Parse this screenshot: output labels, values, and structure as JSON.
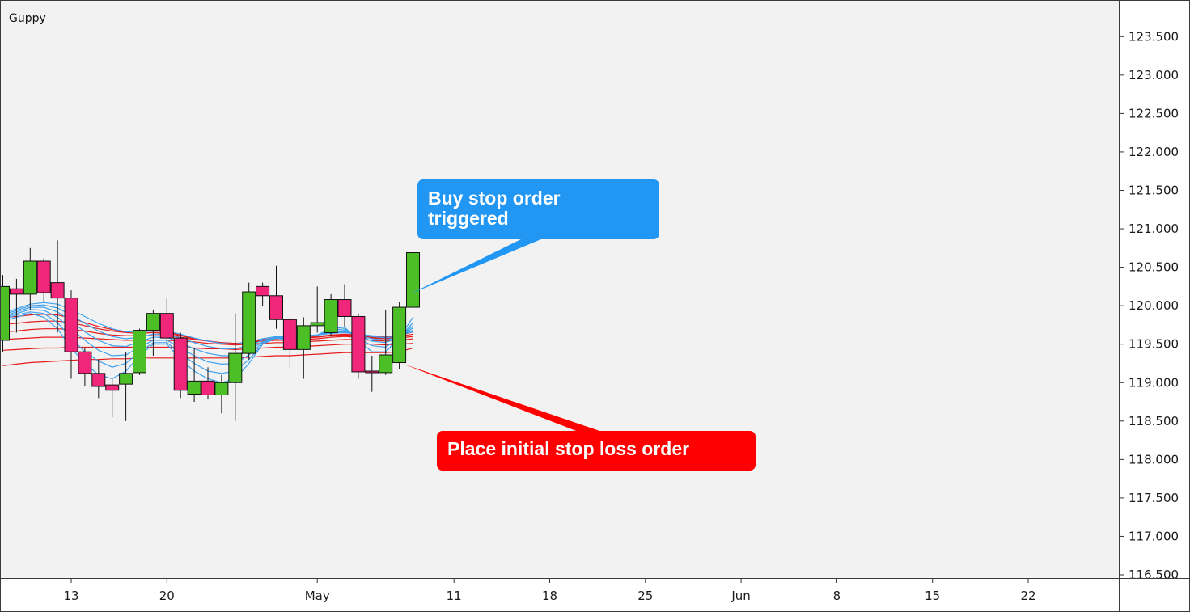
{
  "chart_data": {
    "type": "candlestick",
    "title": "Guppy",
    "colors": {
      "background": "#f2f2f2",
      "up": "#4cbf26",
      "down": "#f0267a",
      "short_ema": "#3ea2f0",
      "long_ema": "#e81b1b",
      "buy_callout": "#2196f3",
      "stop_callout": "#ff0000"
    },
    "y_axis": {
      "min": 116.5,
      "max": 123.75,
      "ticks": [
        "123.500",
        "123.000",
        "122.500",
        "122.000",
        "121.500",
        "121.000",
        "120.500",
        "120.000",
        "119.500",
        "119.000",
        "118.500",
        "118.000",
        "117.500",
        "117.000",
        "116.500"
      ]
    },
    "x_axis": {
      "start": "2020-04-08",
      "end": "2020-06-27",
      "ticks": [
        {
          "date": "2020-04-13",
          "label": "13"
        },
        {
          "date": "2020-04-20",
          "label": "20"
        },
        {
          "date": "2020-05-01",
          "label": "May"
        },
        {
          "date": "2020-05-11",
          "label": "11"
        },
        {
          "date": "2020-05-18",
          "label": "18"
        },
        {
          "date": "2020-05-25",
          "label": "25"
        },
        {
          "date": "2020-06-01",
          "label": "Jun"
        },
        {
          "date": "2020-06-08",
          "label": "8"
        },
        {
          "date": "2020-06-15",
          "label": "15"
        },
        {
          "date": "2020-06-22",
          "label": "22"
        }
      ]
    },
    "candles": [
      {
        "date": "2020-04-08",
        "o": 119.55,
        "h": 120.4,
        "l": 119.4,
        "c": 120.25
      },
      {
        "date": "2020-04-09",
        "o": 120.22,
        "h": 120.35,
        "l": 119.65,
        "c": 120.15
      },
      {
        "date": "2020-04-10",
        "o": 120.15,
        "h": 120.75,
        "l": 119.95,
        "c": 120.58
      },
      {
        "date": "2020-04-11",
        "o": 120.58,
        "h": 120.62,
        "l": 120.05,
        "c": 120.17
      },
      {
        "date": "2020-04-12",
        "o": 120.3,
        "h": 120.85,
        "l": 119.65,
        "c": 120.1
      },
      {
        "date": "2020-04-13",
        "o": 120.1,
        "h": 120.2,
        "l": 119.05,
        "c": 119.4
      },
      {
        "date": "2020-04-14",
        "o": 119.4,
        "h": 119.45,
        "l": 118.95,
        "c": 119.12
      },
      {
        "date": "2020-04-15",
        "o": 119.12,
        "h": 119.3,
        "l": 118.8,
        "c": 118.95
      },
      {
        "date": "2020-04-16",
        "o": 118.97,
        "h": 119.05,
        "l": 118.55,
        "c": 118.9
      },
      {
        "date": "2020-04-17",
        "o": 118.98,
        "h": 119.4,
        "l": 118.5,
        "c": 119.12
      },
      {
        "date": "2020-04-18",
        "o": 119.13,
        "h": 119.7,
        "l": 119.1,
        "c": 119.68
      },
      {
        "date": "2020-04-19",
        "o": 119.68,
        "h": 119.95,
        "l": 119.35,
        "c": 119.9
      },
      {
        "date": "2020-04-20",
        "o": 119.9,
        "h": 120.1,
        "l": 119.5,
        "c": 119.58
      },
      {
        "date": "2020-04-21",
        "o": 119.58,
        "h": 119.65,
        "l": 118.8,
        "c": 118.9
      },
      {
        "date": "2020-04-22",
        "o": 118.85,
        "h": 119.45,
        "l": 118.75,
        "c": 119.02
      },
      {
        "date": "2020-04-23",
        "o": 119.02,
        "h": 119.2,
        "l": 118.78,
        "c": 118.84
      },
      {
        "date": "2020-04-24",
        "o": 118.84,
        "h": 119.1,
        "l": 118.6,
        "c": 119.0
      },
      {
        "date": "2020-04-25",
        "o": 119.0,
        "h": 119.9,
        "l": 118.5,
        "c": 119.38
      },
      {
        "date": "2020-04-26",
        "o": 119.38,
        "h": 120.3,
        "l": 119.3,
        "c": 120.18
      },
      {
        "date": "2020-04-27",
        "o": 120.25,
        "h": 120.3,
        "l": 120.0,
        "c": 120.13
      },
      {
        "date": "2020-04-28",
        "o": 120.13,
        "h": 120.52,
        "l": 119.7,
        "c": 119.82
      },
      {
        "date": "2020-04-29",
        "o": 119.82,
        "h": 119.85,
        "l": 119.2,
        "c": 119.43
      },
      {
        "date": "2020-04-30",
        "o": 119.43,
        "h": 119.85,
        "l": 119.05,
        "c": 119.74
      },
      {
        "date": "2020-05-01",
        "o": 119.74,
        "h": 120.25,
        "l": 119.65,
        "c": 119.78
      },
      {
        "date": "2020-05-02",
        "o": 119.65,
        "h": 120.15,
        "l": 119.6,
        "c": 120.08
      },
      {
        "date": "2020-05-03",
        "o": 120.08,
        "h": 120.28,
        "l": 119.72,
        "c": 119.86
      },
      {
        "date": "2020-05-04",
        "o": 119.86,
        "h": 119.9,
        "l": 119.05,
        "c": 119.14
      },
      {
        "date": "2020-05-05",
        "o": 119.15,
        "h": 119.35,
        "l": 118.88,
        "c": 119.13
      },
      {
        "date": "2020-05-06",
        "o": 119.13,
        "h": 119.95,
        "l": 119.1,
        "c": 119.36
      },
      {
        "date": "2020-05-07",
        "o": 119.26,
        "h": 120.05,
        "l": 119.18,
        "c": 119.98
      },
      {
        "date": "2020-05-08",
        "o": 119.98,
        "h": 120.75,
        "l": 119.9,
        "c": 120.69
      }
    ],
    "ema_short": [
      [
        119.8,
        119.85,
        119.9,
        119.85,
        119.7,
        119.45,
        119.25,
        119.1,
        119.05,
        119.15,
        119.35,
        119.5,
        119.5,
        119.3,
        119.15,
        119.05,
        119.0,
        119.05,
        119.25,
        119.5,
        119.6,
        119.55,
        119.58,
        119.62,
        119.7,
        119.72,
        119.55,
        119.4,
        119.4,
        119.58,
        119.85
      ],
      [
        119.82,
        119.88,
        119.92,
        119.9,
        119.78,
        119.58,
        119.4,
        119.28,
        119.2,
        119.25,
        119.4,
        119.52,
        119.52,
        119.38,
        119.25,
        119.15,
        119.12,
        119.15,
        119.3,
        119.5,
        119.58,
        119.55,
        119.58,
        119.62,
        119.68,
        119.7,
        119.58,
        119.48,
        119.46,
        119.58,
        119.78
      ],
      [
        119.84,
        119.9,
        119.95,
        119.94,
        119.85,
        119.7,
        119.55,
        119.42,
        119.35,
        119.36,
        119.46,
        119.55,
        119.55,
        119.45,
        119.35,
        119.27,
        119.24,
        119.25,
        119.36,
        119.52,
        119.58,
        119.57,
        119.59,
        119.62,
        119.66,
        119.68,
        119.61,
        119.54,
        119.52,
        119.59,
        119.74
      ],
      [
        119.86,
        119.92,
        119.98,
        119.98,
        119.92,
        119.8,
        119.66,
        119.55,
        119.48,
        119.47,
        119.53,
        119.59,
        119.59,
        119.52,
        119.44,
        119.38,
        119.35,
        119.35,
        119.42,
        119.53,
        119.58,
        119.58,
        119.6,
        119.62,
        119.65,
        119.67,
        119.62,
        119.57,
        119.55,
        119.6,
        119.71
      ],
      [
        119.88,
        119.94,
        120.0,
        120.01,
        119.97,
        119.88,
        119.77,
        119.67,
        119.6,
        119.57,
        119.59,
        119.63,
        119.63,
        119.58,
        119.52,
        119.47,
        119.44,
        119.44,
        119.48,
        119.55,
        119.59,
        119.59,
        119.6,
        119.62,
        119.64,
        119.66,
        119.63,
        119.6,
        119.58,
        119.61,
        119.68
      ],
      [
        119.9,
        119.96,
        120.02,
        120.04,
        120.02,
        119.95,
        119.86,
        119.77,
        119.7,
        119.66,
        119.66,
        119.67,
        119.67,
        119.63,
        119.58,
        119.54,
        119.51,
        119.5,
        119.53,
        119.57,
        119.6,
        119.6,
        119.61,
        119.62,
        119.64,
        119.65,
        119.63,
        119.61,
        119.6,
        119.62,
        119.66
      ]
    ],
    "ema_long": [
      [
        119.85,
        119.86,
        119.88,
        119.89,
        119.88,
        119.84,
        119.78,
        119.73,
        119.69,
        119.66,
        119.66,
        119.67,
        119.66,
        119.62,
        119.57,
        119.54,
        119.51,
        119.5,
        119.52,
        119.56,
        119.58,
        119.58,
        119.59,
        119.6,
        119.62,
        119.63,
        119.62,
        119.6,
        119.59,
        119.61,
        119.66
      ],
      [
        119.76,
        119.77,
        119.79,
        119.8,
        119.8,
        119.78,
        119.74,
        119.7,
        119.67,
        119.65,
        119.64,
        119.65,
        119.64,
        119.61,
        119.57,
        119.54,
        119.52,
        119.51,
        119.52,
        119.55,
        119.57,
        119.57,
        119.58,
        119.59,
        119.61,
        119.62,
        119.61,
        119.59,
        119.58,
        119.6,
        119.63
      ],
      [
        119.66,
        119.67,
        119.69,
        119.7,
        119.7,
        119.69,
        119.67,
        119.64,
        119.62,
        119.61,
        119.61,
        119.61,
        119.61,
        119.59,
        119.56,
        119.54,
        119.52,
        119.51,
        119.52,
        119.54,
        119.55,
        119.55,
        119.56,
        119.57,
        119.59,
        119.6,
        119.59,
        119.58,
        119.57,
        119.58,
        119.6
      ],
      [
        119.56,
        119.57,
        119.58,
        119.59,
        119.59,
        119.59,
        119.58,
        119.57,
        119.56,
        119.55,
        119.55,
        119.55,
        119.55,
        119.54,
        119.53,
        119.51,
        119.5,
        119.49,
        119.5,
        119.51,
        119.52,
        119.52,
        119.53,
        119.54,
        119.55,
        119.56,
        119.56,
        119.55,
        119.54,
        119.55,
        119.57
      ],
      [
        119.42,
        119.43,
        119.44,
        119.45,
        119.45,
        119.46,
        119.46,
        119.46,
        119.46,
        119.46,
        119.46,
        119.46,
        119.46,
        119.46,
        119.45,
        119.44,
        119.44,
        119.43,
        119.44,
        119.45,
        119.46,
        119.46,
        119.47,
        119.48,
        119.49,
        119.5,
        119.5,
        119.5,
        119.49,
        119.5,
        119.51
      ],
      [
        119.22,
        119.24,
        119.26,
        119.27,
        119.28,
        119.29,
        119.3,
        119.3,
        119.31,
        119.31,
        119.32,
        119.32,
        119.32,
        119.32,
        119.32,
        119.32,
        119.32,
        119.32,
        119.33,
        119.34,
        119.35,
        119.35,
        119.36,
        119.37,
        119.38,
        119.39,
        119.39,
        119.39,
        119.39,
        119.4,
        119.45
      ]
    ],
    "annotations": [
      {
        "id": "buy",
        "text_lines": [
          "Buy stop order",
          "triggered"
        ],
        "target_date": "2020-05-08",
        "target_value": 120.15
      },
      {
        "id": "stop",
        "text_lines": [
          "Place initial stop loss order"
        ],
        "target_date": "2020-05-07",
        "target_value": 119.25
      }
    ]
  }
}
